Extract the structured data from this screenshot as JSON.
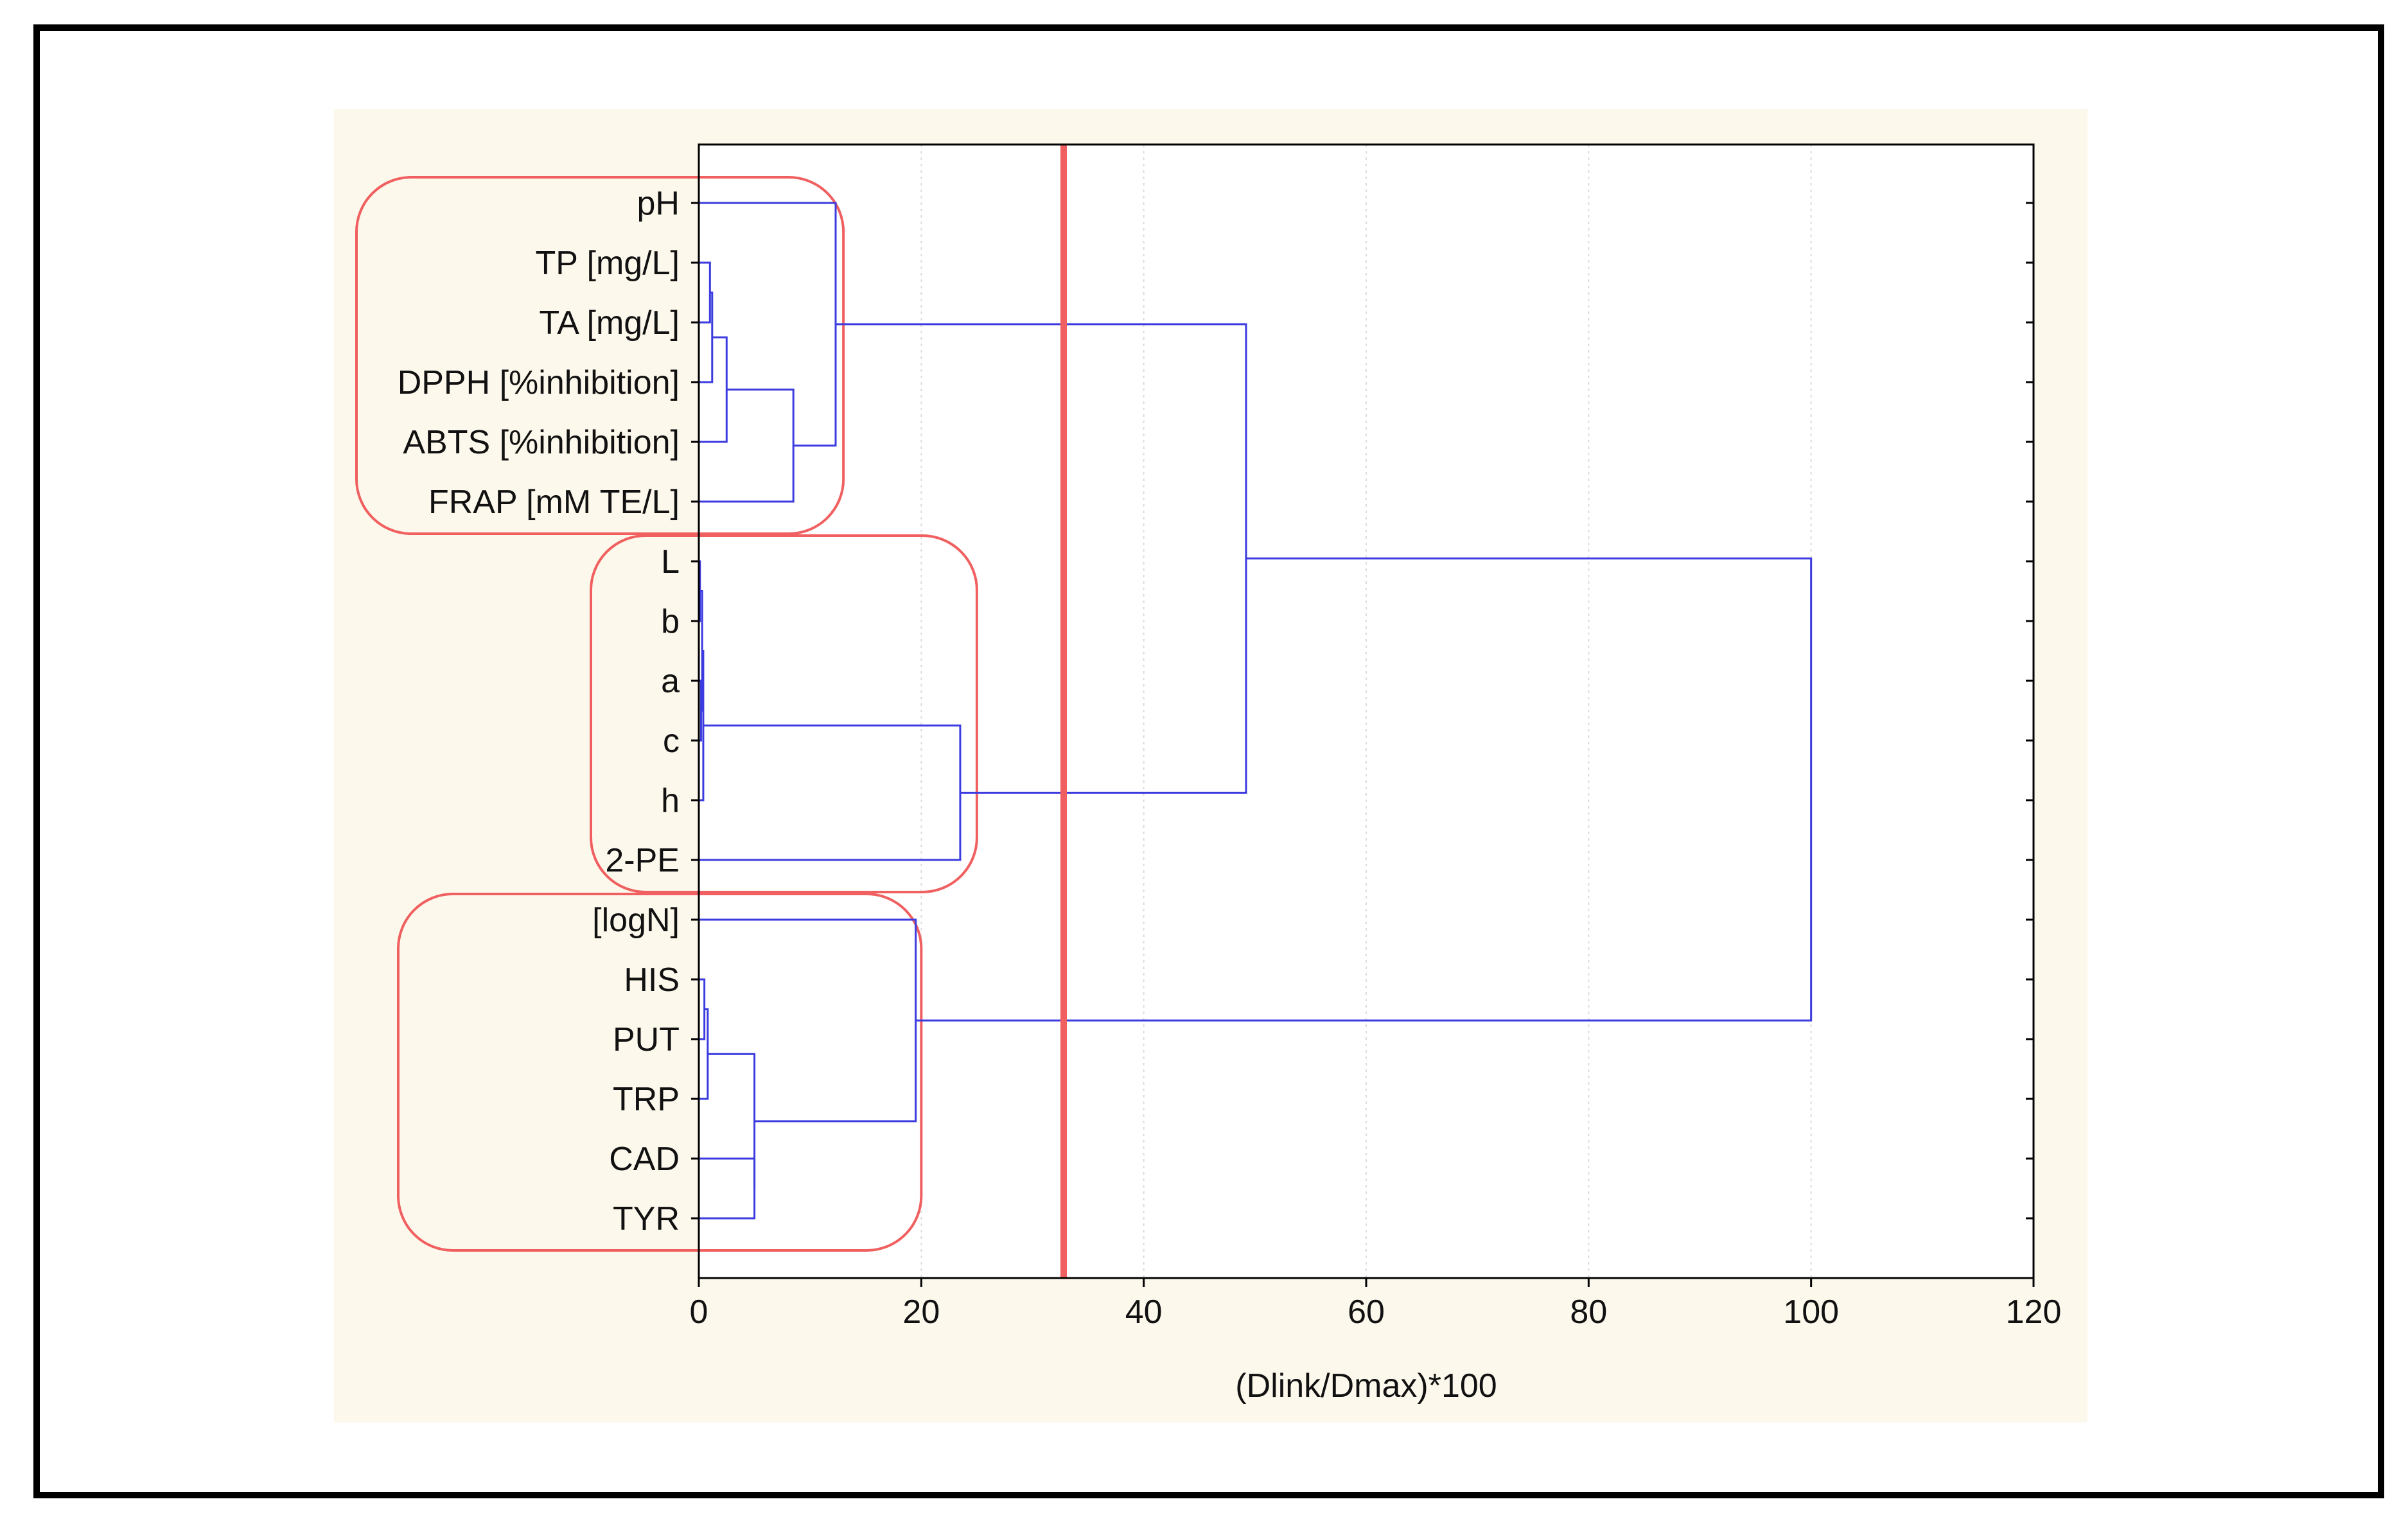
{
  "chart_data": {
    "type": "dendrogram",
    "title": "",
    "xlabel": "(Dlink/Dmax)*100",
    "ylabel": "",
    "xlim": [
      0,
      120
    ],
    "x_ticks": [
      "0",
      "20",
      "40",
      "60",
      "80",
      "100",
      "120"
    ],
    "grid": "vertical",
    "leaves": [
      "pH",
      "TP [mg/L]",
      "TA [mg/L]",
      "DPPH [%inhibition]",
      "ABTS [%inhibition]",
      "FRAP [mM TE/L]",
      "L",
      "b",
      "a",
      "c",
      "h",
      "2-PE",
      "[logN]",
      "HIS",
      "PUT",
      "TRP",
      "CAD",
      "TYR"
    ],
    "merges": [
      {
        "id": "m1",
        "left": 1,
        "right": 2,
        "height": 1.0
      },
      {
        "id": "m2",
        "left": "m1",
        "right": 3,
        "height": 1.2
      },
      {
        "id": "m3",
        "left": "m2",
        "right": 4,
        "height": 2.5
      },
      {
        "id": "m4",
        "left": "m3",
        "right": 5,
        "height": 8.5
      },
      {
        "id": "m5",
        "left": 0,
        "right": "m4",
        "height": 12.3
      },
      {
        "id": "m6",
        "left": 6,
        "right": 7,
        "height": 0.1
      },
      {
        "id": "m7",
        "left": 8,
        "right": 9,
        "height": 0.2
      },
      {
        "id": "m8",
        "left": "m6",
        "right": "m7",
        "height": 0.3
      },
      {
        "id": "m9",
        "left": "m8",
        "right": 10,
        "height": 0.4
      },
      {
        "id": "m10",
        "left": "m9",
        "right": 11,
        "height": 23.5
      },
      {
        "id": "m11",
        "left": "m5",
        "right": "m10",
        "height": 49.2
      },
      {
        "id": "m12",
        "left": 13,
        "right": 14,
        "height": 0.5
      },
      {
        "id": "m13",
        "left": "m12",
        "right": 15,
        "height": 0.8
      },
      {
        "id": "m14",
        "left": 16,
        "right": 17,
        "height": 5.0
      },
      {
        "id": "m15",
        "left": "m13",
        "right": "m14",
        "height": 5.0
      },
      {
        "id": "m16",
        "left": 12,
        "right": "m15",
        "height": 19.5
      },
      {
        "id": "m17",
        "left": "m11",
        "right": "m16",
        "height": 100
      }
    ],
    "cut_line": 32.8,
    "clusters": [
      {
        "name": "cluster-1",
        "from": 0,
        "to": 5,
        "x_end": 13.0
      },
      {
        "name": "cluster-2",
        "from": 6,
        "to": 11,
        "x_end": 25.0
      },
      {
        "name": "cluster-3",
        "from": 12,
        "to": 17,
        "x_end": 20.0
      }
    ],
    "colors": {
      "tree": "#3b3bdf",
      "cut_line": "#f06060",
      "cluster_box": "#f06060",
      "panel_background": "#fdf8ec",
      "grid": "#dcdcdc",
      "axis": "#000000"
    }
  }
}
